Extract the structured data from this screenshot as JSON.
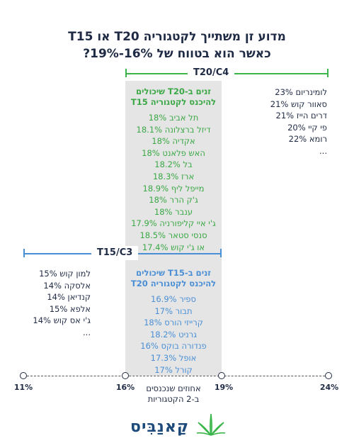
{
  "title": {
    "line1": "מדוע זן משתייך לקטגוריה T20 או T15",
    "line2": "כאשר הוא בטווח של 16%-19%?"
  },
  "ranges": {
    "green_label": "T20/C4",
    "blue_label": "T15/C3"
  },
  "overlap_t20": {
    "heading_line1": "זנים ב-T20 שיכולים",
    "heading_line2": "להיכנס לקטגוריה T15",
    "items": [
      "תל אביב 18%",
      "דיזל ברצלונה 18.1%",
      "אקדיה 18%",
      "האש פלאנט 18%",
      "בל 18.2%",
      "ארז 18.3%",
      "מייפל ליף 18.9%",
      "ג'ק הרר 18%",
      "ענבר 18%",
      "ג'י איי קליפורניה 17.9%",
      "סנסי סטאר 18.5%",
      "או ג'י קוש 17.4%"
    ]
  },
  "overlap_t15": {
    "heading_line1": "זנים ב-T15 שיכולים",
    "heading_line2": "להיכנס לקטגוריה T20",
    "items": [
      "ספיר 16.9%",
      "תבור 17%",
      "קרייזי הורס 18%",
      "גרניט 18.2%",
      "פנדורה בוקס 16%",
      "אופל 17.3%",
      "קורל 17%"
    ]
  },
  "t20_examples": [
    "לומינריום 23%",
    "סאוור קוש 21%",
    "דרים הייז 21%",
    "פי קיי 20%",
    "רומא 22%",
    "..."
  ],
  "t15_examples": [
    "למון קוש 15%",
    "אלסקה 14%",
    "קנדיאן 14%",
    "אלפא 15%",
    "ג'י אס קוש 14%",
    "..."
  ],
  "axis": {
    "ticks": [
      "11%",
      "16%",
      "19%",
      "24%"
    ],
    "caption_line1": "אחוזים שנכנסים",
    "caption_line2": "ב-2 הקטגוריות"
  },
  "logo": {
    "text": "קַאנַבִּיס"
  },
  "colors": {
    "green": "#3ab54a",
    "blue": "#4a8fd6",
    "navy": "#1f2a44"
  }
}
